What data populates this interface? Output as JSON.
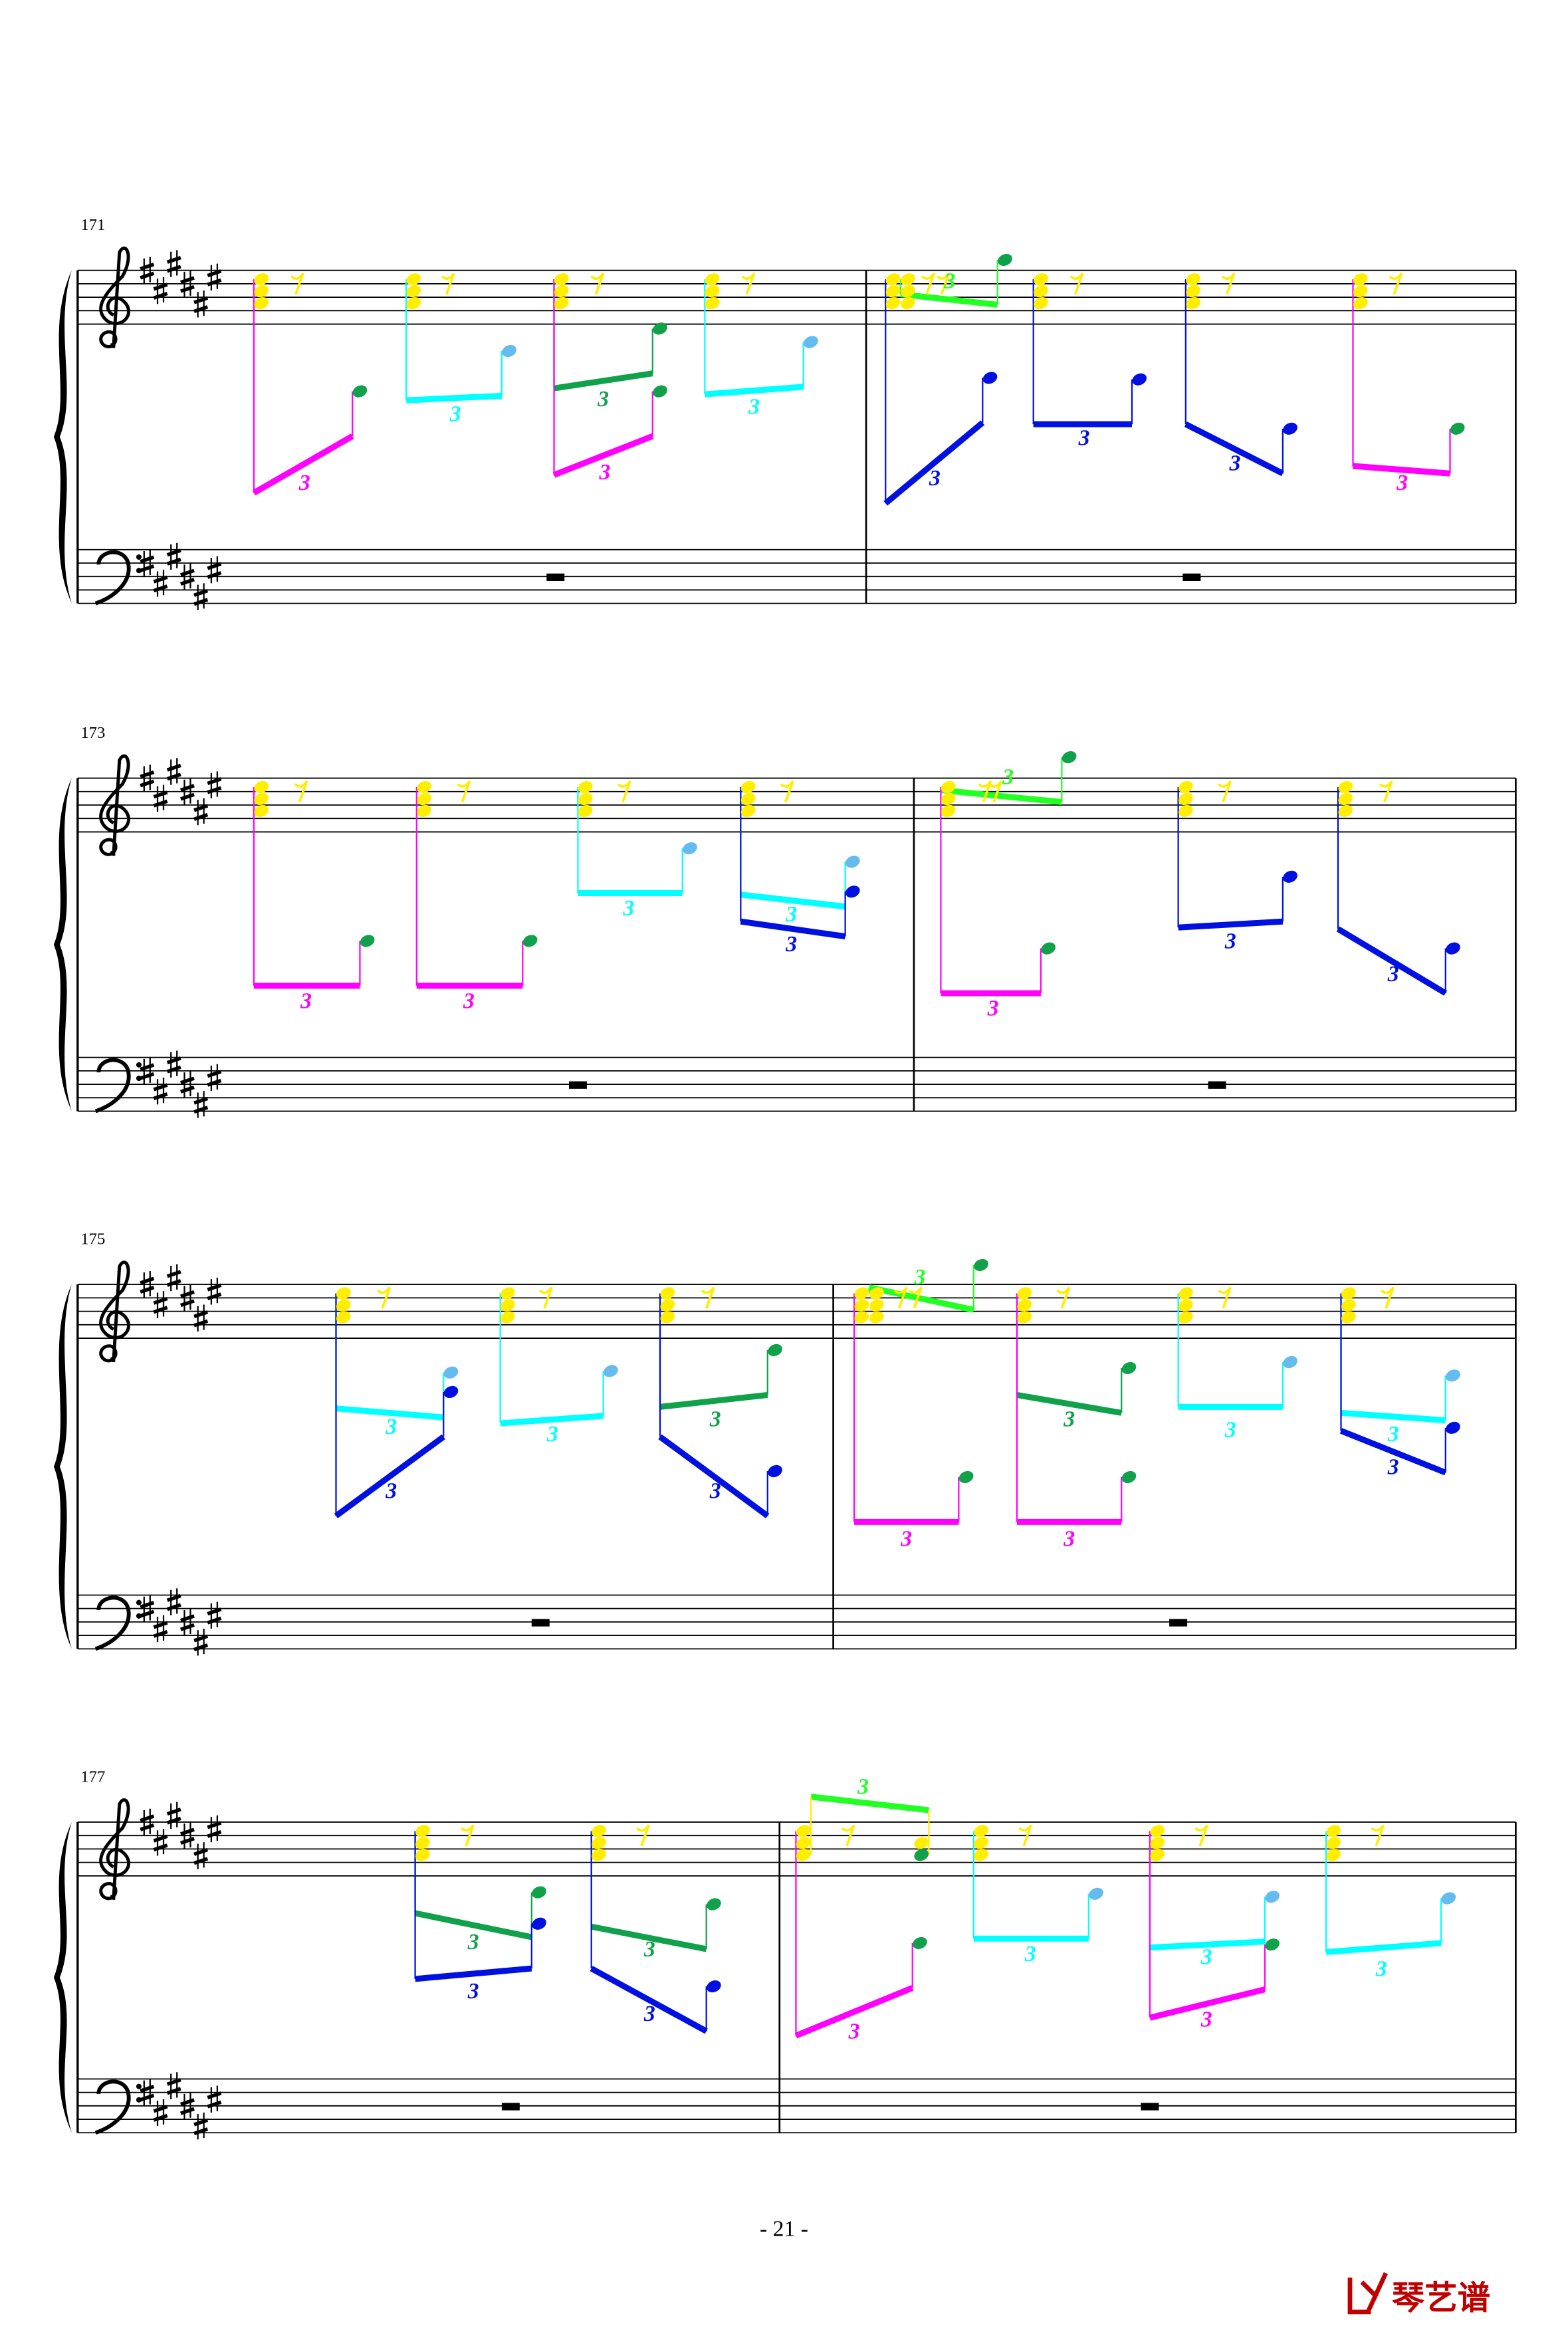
{
  "systems": [
    {
      "measure_number": "171",
      "tuplets": [
        "3",
        "3",
        "3",
        "3",
        "3",
        "3",
        "3",
        "3",
        "3",
        "3"
      ]
    },
    {
      "measure_number": "173",
      "tuplets": [
        "3",
        "3",
        "3",
        "3",
        "3",
        "3",
        "3",
        "3",
        "3"
      ]
    },
    {
      "measure_number": "175",
      "tuplets": [
        "3",
        "3",
        "3",
        "3",
        "3",
        "3",
        "3",
        "3",
        "3",
        "3",
        "3",
        "3"
      ]
    },
    {
      "measure_number": "177",
      "tuplets": [
        "3",
        "3",
        "3",
        "3",
        "3",
        "3",
        "3",
        "3",
        "3",
        "3"
      ]
    }
  ],
  "page_number": "- 21 -",
  "logo": "琴艺谱"
}
